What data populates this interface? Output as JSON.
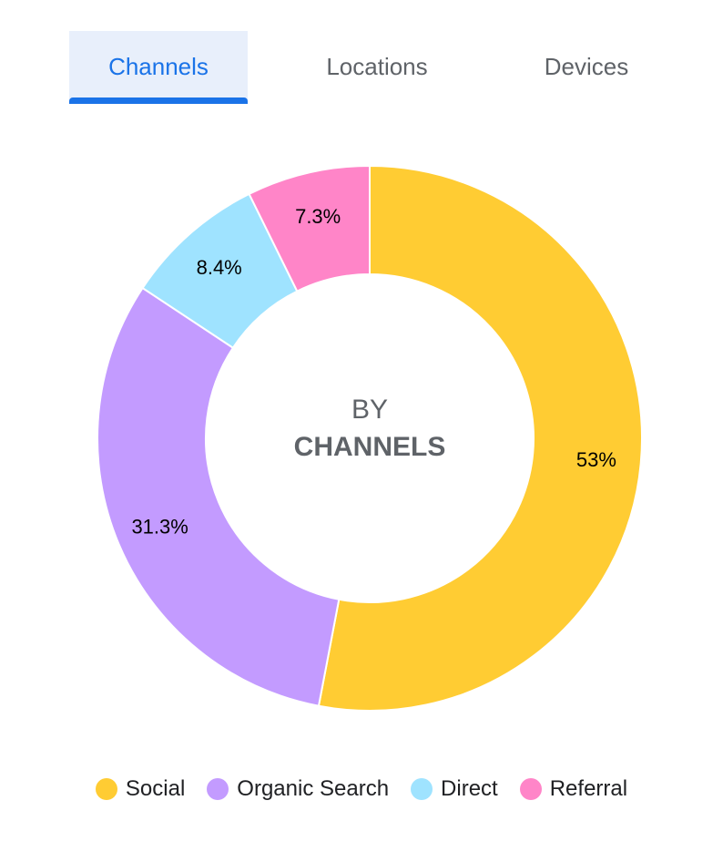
{
  "tabs": [
    {
      "label": "Channels",
      "active": true
    },
    {
      "label": "Locations",
      "active": false
    },
    {
      "label": "Devices",
      "active": false
    }
  ],
  "center": {
    "line1": "BY",
    "line2": "CHANNELS"
  },
  "chart_data": {
    "type": "pie",
    "variant": "donut",
    "categories": [
      "Social",
      "Organic Search",
      "Direct",
      "Referral"
    ],
    "values": [
      53,
      31.3,
      8.4,
      7.3
    ],
    "data_labels": [
      "53%",
      "31.3%",
      "8.4%",
      "7.3%"
    ],
    "colors": [
      "#ffcc33",
      "#c39bff",
      "#9fe3ff",
      "#ff85c8"
    ],
    "start_angle": "12 o'clock",
    "direction": "clockwise",
    "legend_position": "bottom"
  }
}
